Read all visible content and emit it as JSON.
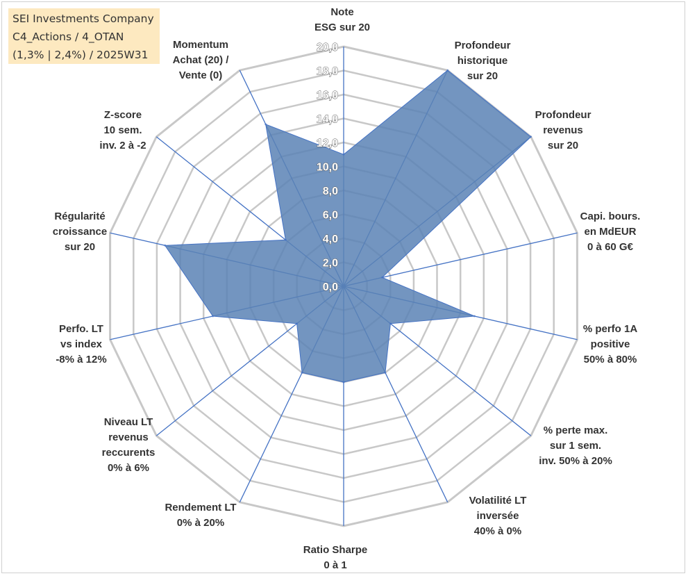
{
  "title_box": {
    "lines": [
      "SEI Investments Company",
      "C4_Actions / 4_OTAN",
      "(1,3% | 2,4%) / 2025W31"
    ]
  },
  "colors": {
    "fill": "#5b82b5",
    "fill_opacity": 0.85,
    "spoke": "#4472c4",
    "ring": "#c8c8c8",
    "title_bg": "#fde9c0"
  },
  "chart_data": {
    "type": "radar",
    "r_range": [
      0,
      20
    ],
    "r_ticks": [
      "0,0",
      "2,0",
      "4,0",
      "6,0",
      "8,0",
      "10,0",
      "12,0",
      "14,0",
      "16,0",
      "18,0",
      "20,0"
    ],
    "axes": [
      {
        "label": [
          "Note",
          "ESG sur 20"
        ],
        "value": 11.0
      },
      {
        "label": [
          "Profondeur",
          "historique",
          "sur 20"
        ],
        "value": 20.0
      },
      {
        "label": [
          "Profondeur",
          "revenus",
          "sur 20"
        ],
        "value": 20.0
      },
      {
        "label": [
          "Capi. bours.",
          "en MdEUR",
          "0 à 60 G€"
        ],
        "value": 3.3
      },
      {
        "label": [
          "% perfo 1A",
          "positive",
          "50% à 80%"
        ],
        "value": 11.2
      },
      {
        "label": [
          "% perte max.",
          "sur 1 sem.",
          "inv. 50% à 20%"
        ],
        "value": 5.0
      },
      {
        "label": [
          "Volatilité LT",
          "inversée",
          "40% à 0%"
        ],
        "value": 8.0
      },
      {
        "label": [
          "Ratio Sharpe",
          "0 à 1"
        ],
        "value": 8.0
      },
      {
        "label": [
          "Rendement LT",
          "0% à 20%"
        ],
        "value": 8.0
      },
      {
        "label": [
          "Niveau LT",
          "revenus",
          "reccurents",
          "0% à 6%"
        ],
        "value": 5.0
      },
      {
        "label": [
          "Perfo. LT",
          "vs index",
          "-8% à 12%"
        ],
        "value": 11.2
      },
      {
        "label": [
          "Régularité",
          "croissance",
          "sur 20"
        ],
        "value": 15.3
      },
      {
        "label": [
          "Z-score",
          "10 sem.",
          "inv. 2 à -2"
        ],
        "value": 6.2
      },
      {
        "label": [
          "Momentum",
          "Achat (20) /",
          "Vente (0)"
        ],
        "value": 15.0
      }
    ]
  }
}
